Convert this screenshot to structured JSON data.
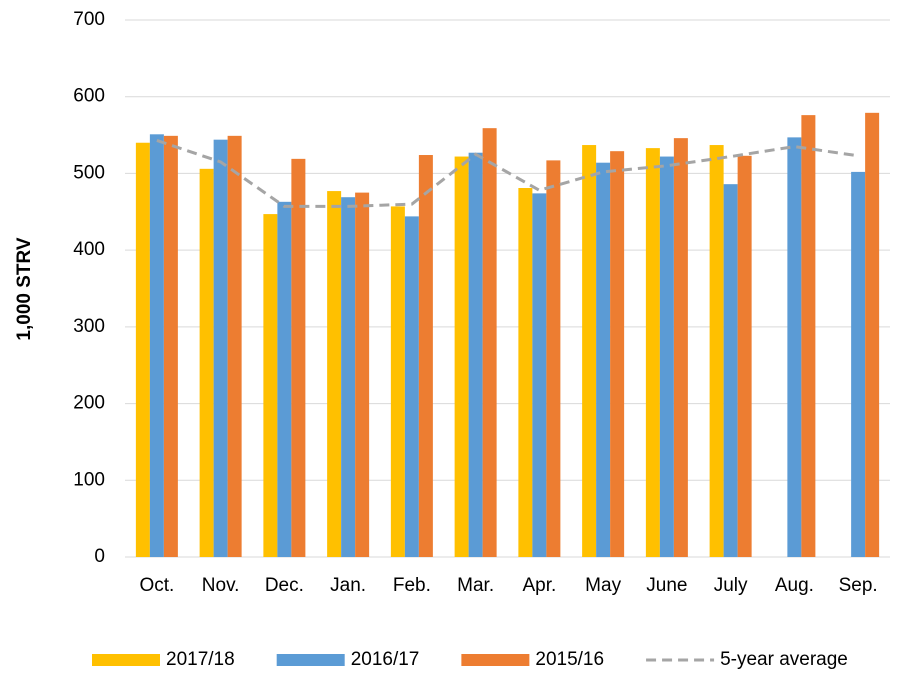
{
  "chart_data": {
    "type": "bar",
    "y_label": "1,000 STRV",
    "categories": [
      "Oct.",
      "Nov.",
      "Dec.",
      "Jan.",
      "Feb.",
      "Mar.",
      "Apr.",
      "May",
      "June",
      "July",
      "Aug.",
      "Sep."
    ],
    "series": [
      {
        "name": "2017/18",
        "color": "#ffc000",
        "values": [
          540,
          506,
          447,
          477,
          457,
          522,
          481,
          537,
          533,
          537,
          null,
          null
        ]
      },
      {
        "name": "2016/17",
        "color": "#5b9bd5",
        "values": [
          551,
          544,
          463,
          469,
          444,
          527,
          474,
          514,
          522,
          486,
          547,
          502
        ]
      },
      {
        "name": "2015/16",
        "color": "#ed7d31",
        "values": [
          549,
          549,
          519,
          475,
          524,
          559,
          517,
          529,
          546,
          523,
          576,
          579
        ]
      },
      {
        "name": "5-year average",
        "color": "#a5a5a5",
        "type": "line",
        "dashed": true,
        "values": [
          543,
          515,
          457,
          457,
          460,
          525,
          478,
          502,
          510,
          522,
          535,
          523
        ]
      }
    ],
    "ylim": [
      0,
      700
    ],
    "yticks": [
      0,
      100,
      200,
      300,
      400,
      500,
      600,
      700
    ],
    "grid": true,
    "legend": "bottom"
  }
}
